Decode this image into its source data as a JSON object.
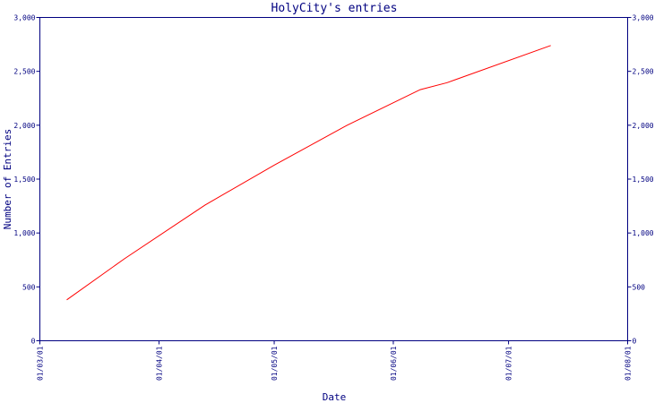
{
  "chart_data": {
    "type": "line",
    "title": "HolyCity's entries",
    "xlabel": "Date",
    "ylabel": "Number of Entries",
    "x_ticks": [
      "01/03/01",
      "01/04/01",
      "01/05/01",
      "01/06/01",
      "01/07/01",
      "01/08/01"
    ],
    "y_ticks": [
      "0",
      "500",
      "1,000",
      "1,500",
      "2,000",
      "2,500",
      "3,000"
    ],
    "ylim": [
      0,
      3000
    ],
    "xlim": [
      "2001-03-01",
      "2001-08-01"
    ],
    "grid": false,
    "legend": "none",
    "series": [
      {
        "color": "#ff0000",
        "x": [
          "2001-03-08",
          "2001-03-23",
          "2001-04-13",
          "2001-05-01",
          "2001-05-20",
          "2001-06-08",
          "2001-06-08",
          "2001-06-15",
          "2001-07-12"
        ],
        "values": [
          380,
          760,
          1260,
          1630,
          2000,
          2330,
          2330,
          2395,
          2740
        ]
      }
    ],
    "colors": {
      "axis": "#000080",
      "text": "#000080",
      "line": "#ff0000",
      "background": "#ffffff"
    }
  }
}
